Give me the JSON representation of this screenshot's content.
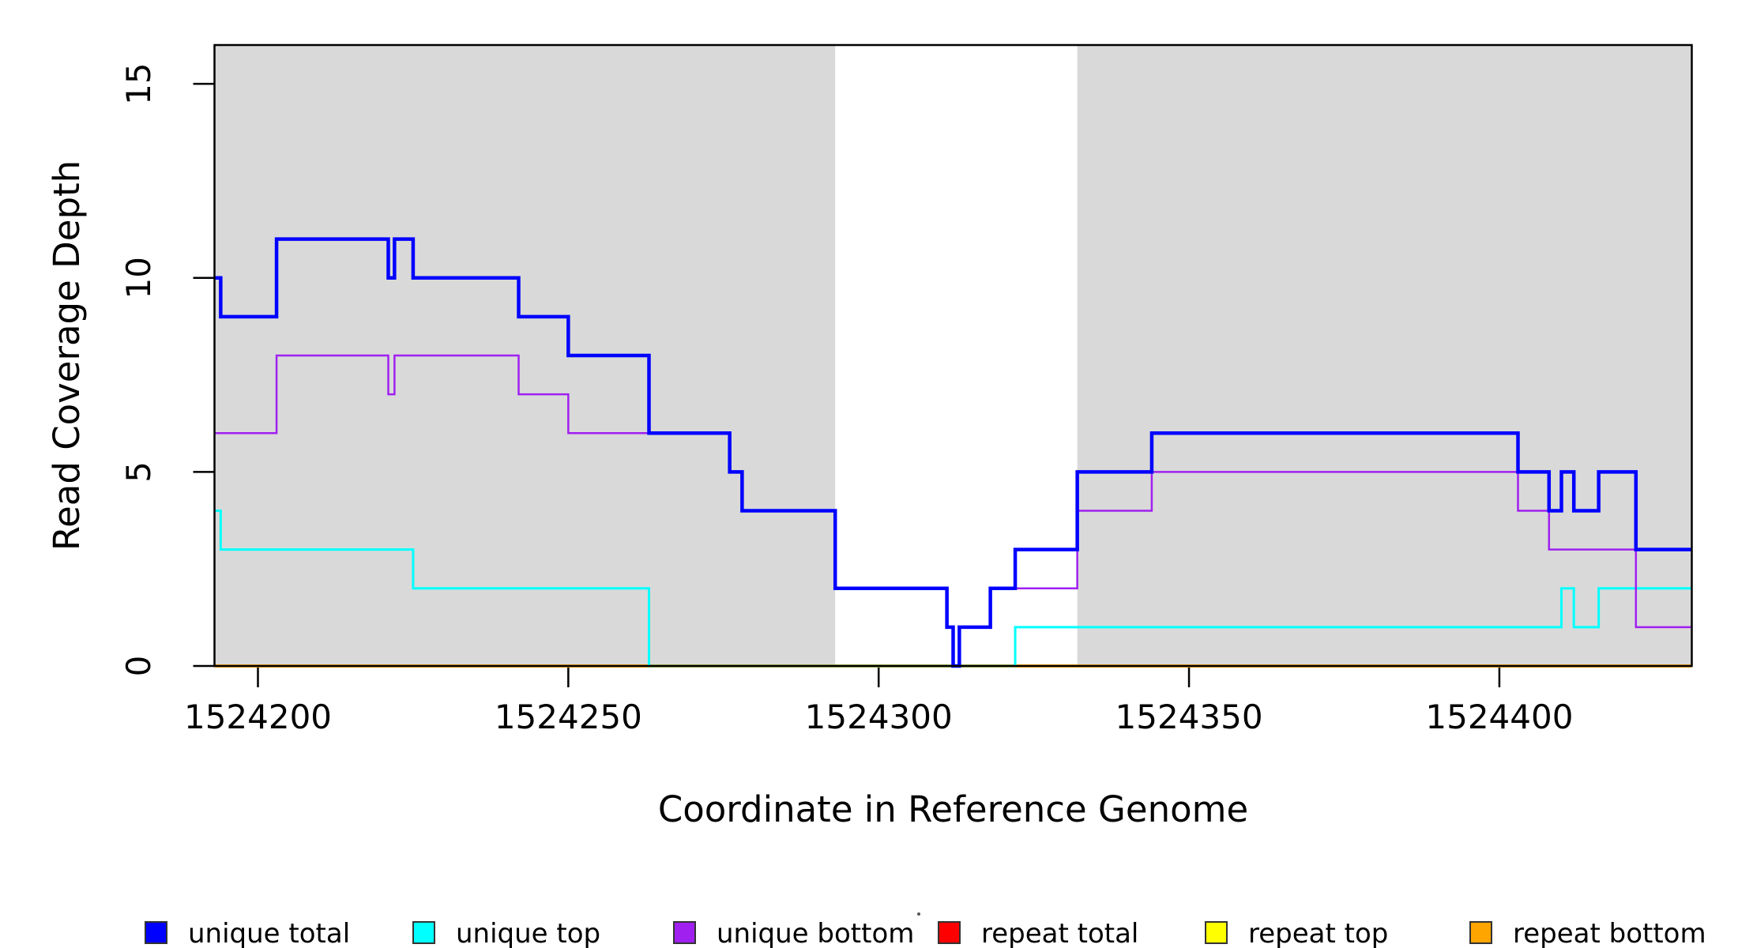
{
  "chart_data": {
    "type": "line",
    "subtype": "step-coverage-plot",
    "title": "",
    "xlabel": "Coordinate in Reference Genome",
    "ylabel": "Read Coverage Depth",
    "x_domain": [
      1524193,
      1524431
    ],
    "y_domain": [
      0,
      16
    ],
    "grid": "off",
    "background_color": "#ffffff",
    "shaded_region_color": "#d9d9d9",
    "shaded_regions": [
      {
        "from": 1524193,
        "to": 1524293
      },
      {
        "from": 1524332,
        "to": 1524431
      }
    ],
    "x_ticks": [
      {
        "value": 1524200,
        "label": "1524200"
      },
      {
        "value": 1524250,
        "label": "1524250"
      },
      {
        "value": 1524300,
        "label": "1524300"
      },
      {
        "value": 1524350,
        "label": "1524350"
      },
      {
        "value": 1524400,
        "label": "1524400"
      }
    ],
    "y_ticks": [
      {
        "value": 0,
        "label": "0"
      },
      {
        "value": 5,
        "label": "5"
      },
      {
        "value": 10,
        "label": "10"
      },
      {
        "value": 15,
        "label": "15"
      }
    ],
    "series": [
      {
        "name": "repeat total",
        "color": "#FF0000",
        "width": 3,
        "steps": [
          [
            1524193,
            0
          ],
          [
            1524431,
            0
          ]
        ]
      },
      {
        "name": "repeat top",
        "color": "#FFFF00",
        "width": 3,
        "steps": [
          [
            1524193,
            0
          ],
          [
            1524431,
            0
          ]
        ]
      },
      {
        "name": "repeat bottom",
        "color": "#FFA500",
        "width": 4,
        "steps": [
          [
            1524193,
            0
          ],
          [
            1524431,
            0
          ]
        ]
      },
      {
        "name": "unique top",
        "color": "#00FFFF",
        "width": 3,
        "steps": [
          [
            1524193,
            4
          ],
          [
            1524194,
            3
          ],
          [
            1524225,
            2
          ],
          [
            1524263,
            0
          ],
          [
            1524322,
            1
          ],
          [
            1524410,
            2
          ],
          [
            1524412,
            1
          ],
          [
            1524416,
            2
          ],
          [
            1524431,
            2
          ]
        ]
      },
      {
        "name": "unique bottom",
        "color": "#A020F0",
        "width": 2.5,
        "steps": [
          [
            1524193,
            6
          ],
          [
            1524203,
            8
          ],
          [
            1524221,
            7
          ],
          [
            1524222,
            8
          ],
          [
            1524242,
            7
          ],
          [
            1524250,
            6
          ],
          [
            1524276,
            5
          ],
          [
            1524278,
            4
          ],
          [
            1524293,
            2
          ],
          [
            1524311,
            1
          ],
          [
            1524312,
            0
          ],
          [
            1524313,
            1
          ],
          [
            1524318,
            2
          ],
          [
            1524332,
            4
          ],
          [
            1524344,
            5
          ],
          [
            1524403,
            4
          ],
          [
            1524408,
            3
          ],
          [
            1524422,
            1
          ],
          [
            1524431,
            1
          ]
        ]
      },
      {
        "name": "unique total",
        "color": "#0000FF",
        "width": 4.5,
        "steps": [
          [
            1524193,
            10
          ],
          [
            1524194,
            9
          ],
          [
            1524203,
            11
          ],
          [
            1524221,
            10
          ],
          [
            1524222,
            11
          ],
          [
            1524225,
            10
          ],
          [
            1524242,
            9
          ],
          [
            1524250,
            8
          ],
          [
            1524263,
            6
          ],
          [
            1524276,
            5
          ],
          [
            1524278,
            4
          ],
          [
            1524293,
            2
          ],
          [
            1524311,
            1
          ],
          [
            1524312,
            0
          ],
          [
            1524313,
            1
          ],
          [
            1524318,
            2
          ],
          [
            1524322,
            3
          ],
          [
            1524332,
            5
          ],
          [
            1524344,
            6
          ],
          [
            1524403,
            5
          ],
          [
            1524408,
            4
          ],
          [
            1524410,
            5
          ],
          [
            1524412,
            4
          ],
          [
            1524416,
            5
          ],
          [
            1524422,
            3
          ],
          [
            1524431,
            3
          ]
        ]
      }
    ],
    "legend_position": "bottom"
  },
  "legend": {
    "items": [
      {
        "label": "unique total",
        "color": "#0000FF"
      },
      {
        "label": "unique top",
        "color": "#00FFFF"
      },
      {
        "label": "unique bottom",
        "color": "#A020F0"
      },
      {
        "label": "repeat total",
        "color": "#FF0000"
      },
      {
        "label": "repeat top",
        "color": "#FFFF00"
      },
      {
        "label": "repeat bottom",
        "color": "#FFA500"
      }
    ]
  }
}
